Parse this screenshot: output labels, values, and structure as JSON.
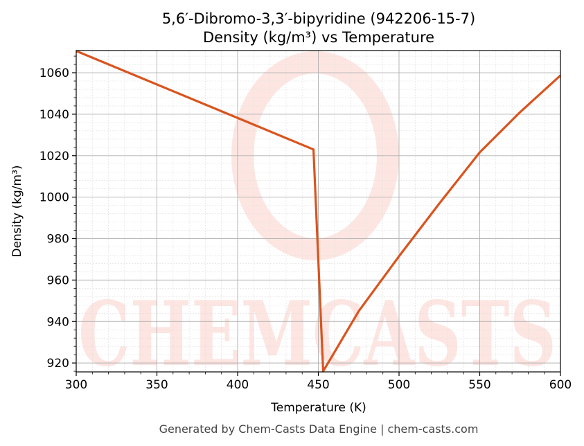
{
  "chart_data": {
    "type": "line",
    "title": "5,6′-Dibromo-3,3′-bipyridine (942206-15-7)",
    "subtitle": "Density (kg/m³) vs Temperature",
    "xlabel": "Temperature (K)",
    "ylabel": "Density (kg/m³)",
    "xlim": [
      300,
      600
    ],
    "ylim": [
      915.7,
      1070.7
    ],
    "xticks": [
      300,
      350,
      400,
      450,
      500,
      550,
      600
    ],
    "yticks": [
      920,
      940,
      960,
      980,
      1000,
      1020,
      1040,
      1060
    ],
    "grid": true,
    "series": [
      {
        "color": "#d9541e",
        "x": [
          300,
          447,
          453,
          475,
          500,
          525,
          550,
          575,
          600
        ],
        "y": [
          1070.5,
          1023,
          916,
          945,
          971.5,
          997,
          1021.6,
          1041,
          1058.7
        ]
      }
    ],
    "watermark": "CHEMCASTS"
  },
  "footer": "Generated by Chem-Casts Data Engine | chem-casts.com"
}
